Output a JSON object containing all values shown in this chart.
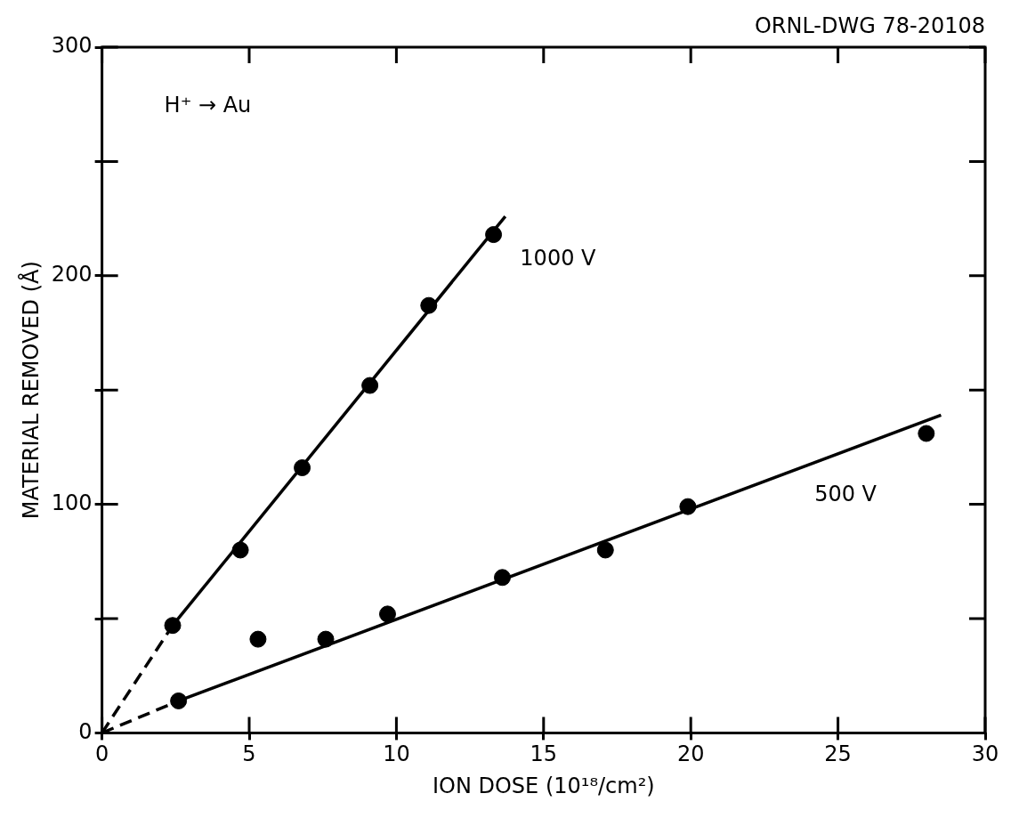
{
  "chart_data": {
    "type": "scatter",
    "xlabel": "ION DOSE (10¹⁸/cm²)",
    "ylabel": "MATERIAL REMOVED (Å)",
    "xlim": [
      0,
      30
    ],
    "xticks": [
      0,
      5,
      10,
      15,
      20,
      25,
      30
    ],
    "ylim": [
      0,
      300
    ],
    "yticks": [
      0,
      {
        "value": 50,
        "label": null
      },
      100,
      {
        "value": 150,
        "label": null
      },
      200,
      {
        "value": 250,
        "label": null
      },
      300
    ],
    "grid": false,
    "legend": false,
    "series": [
      {
        "type": "scatter",
        "marker": "circle",
        "color": "#000000",
        "x": [
          2.4,
          4.7,
          6.8,
          9.1,
          11.1,
          13.3
        ],
        "values": [
          47,
          80,
          116,
          152,
          187,
          218
        ]
      },
      {
        "type": "scatter",
        "marker": "circle",
        "color": "#000000",
        "x": [
          2.6,
          5.3,
          7.6,
          9.7,
          13.6,
          17.1,
          19.9,
          28.0
        ],
        "values": [
          14,
          41,
          41,
          52,
          68,
          80,
          99,
          131
        ]
      },
      {
        "type": "line",
        "marker": "none",
        "line_style": "dashed",
        "color": "#000000",
        "x": [
          0,
          2.4
        ],
        "values": [
          0,
          47
        ]
      },
      {
        "type": "line",
        "marker": "none",
        "line_style": "solid",
        "color": "#000000",
        "x": [
          2.4,
          13.7
        ],
        "values": [
          47,
          226
        ]
      },
      {
        "type": "line",
        "marker": "none",
        "line_style": "dashed",
        "color": "#000000",
        "x": [
          0,
          2.6
        ],
        "values": [
          0,
          14
        ]
      },
      {
        "type": "line",
        "marker": "none",
        "line_style": "solid",
        "color": "#000000",
        "x": [
          2.6,
          28.5
        ],
        "values": [
          14,
          139
        ]
      }
    ],
    "annotations": [
      "H⁺ → Au",
      "ORNL-DWG 78-20108",
      "1000 V",
      "500 V"
    ]
  }
}
